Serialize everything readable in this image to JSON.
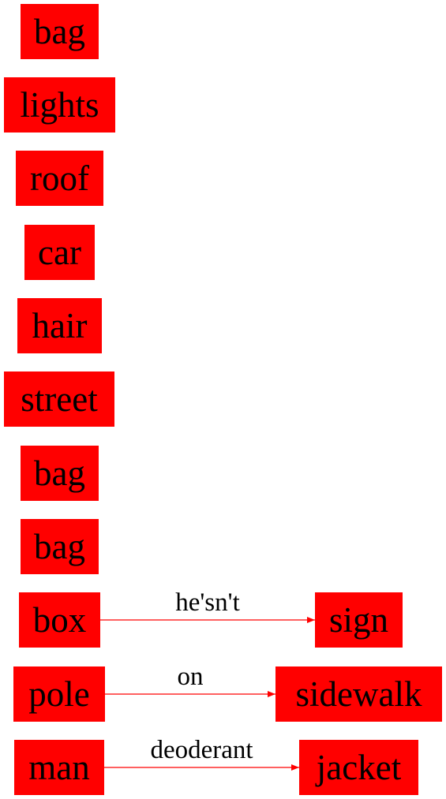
{
  "nodes": [
    {
      "id": "n0",
      "label": "bag"
    },
    {
      "id": "n1",
      "label": "lights"
    },
    {
      "id": "n2",
      "label": "roof"
    },
    {
      "id": "n3",
      "label": "car"
    },
    {
      "id": "n4",
      "label": "hair"
    },
    {
      "id": "n5",
      "label": "street"
    },
    {
      "id": "n6",
      "label": "bag"
    },
    {
      "id": "n7",
      "label": "bag"
    },
    {
      "id": "n8",
      "label": "box"
    },
    {
      "id": "n9",
      "label": "pole"
    },
    {
      "id": "n10",
      "label": "man"
    },
    {
      "id": "n11",
      "label": "sign"
    },
    {
      "id": "n12",
      "label": "sidewalk"
    },
    {
      "id": "n13",
      "label": "jacket"
    }
  ],
  "edges": [
    {
      "from": "n8",
      "to": "n11",
      "label": "he'sn't"
    },
    {
      "from": "n9",
      "to": "n12",
      "label": "on"
    },
    {
      "from": "n10",
      "to": "n13",
      "label": "deoderant"
    }
  ],
  "colors": {
    "node_fill": "#ff0000",
    "edge": "#ff0000",
    "text": "#000000"
  }
}
